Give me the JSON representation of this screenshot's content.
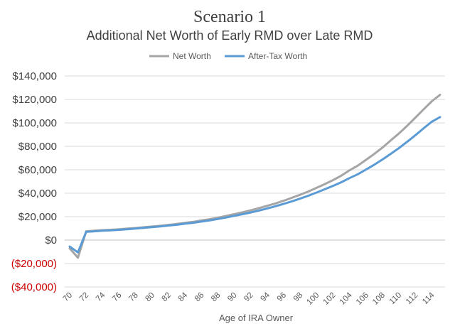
{
  "chart_data": {
    "type": "line",
    "title": "Scenario 1",
    "subtitle": "Additional Net Worth of Early RMD over Late RMD",
    "xlabel": "Age of IRA Owner",
    "ylabel": "",
    "ylim": [
      -40000,
      140000
    ],
    "yticks": [
      140000,
      120000,
      100000,
      80000,
      60000,
      40000,
      20000,
      0,
      -20000,
      -40000
    ],
    "ytick_labels": [
      "$140,000",
      "$120,000",
      "$100,000",
      "$80,000",
      "$60,000",
      "$40,000",
      "$20,000",
      "$0",
      "($20,000)",
      "($40,000)"
    ],
    "x": [
      70,
      71,
      72,
      73,
      74,
      75,
      76,
      77,
      78,
      79,
      80,
      81,
      82,
      83,
      84,
      85,
      86,
      87,
      88,
      89,
      90,
      91,
      92,
      93,
      94,
      95,
      96,
      97,
      98,
      99,
      100,
      101,
      102,
      103,
      104,
      105,
      106,
      107,
      108,
      109,
      110,
      111,
      112,
      113,
      114,
      115
    ],
    "xtick_labels": [
      "70",
      "72",
      "74",
      "76",
      "78",
      "80",
      "82",
      "84",
      "86",
      "88",
      "90",
      "92",
      "94",
      "96",
      "98",
      "100",
      "102",
      "104",
      "106",
      "108",
      "110",
      "112",
      "114"
    ],
    "grid": true,
    "legend_position": "top",
    "series": [
      {
        "name": "Net Worth",
        "color": "#a5a5a5",
        "values": [
          -7000,
          -15000,
          7500,
          8000,
          8500,
          8800,
          9300,
          9800,
          10300,
          11000,
          11600,
          12200,
          13000,
          13800,
          14700,
          15600,
          16700,
          17800,
          19100,
          20600,
          22100,
          23700,
          25400,
          27300,
          29300,
          31300,
          33600,
          36100,
          38700,
          41500,
          44600,
          47800,
          51200,
          55000,
          59500,
          63500,
          68500,
          73500,
          79000,
          85000,
          91000,
          97500,
          104500,
          111500,
          118500,
          124000
        ]
      },
      {
        "name": "After-Tax Worth",
        "color": "#5b9bd5",
        "values": [
          -5500,
          -10500,
          7000,
          7500,
          8000,
          8300,
          8800,
          9300,
          9800,
          10500,
          11100,
          11700,
          12400,
          13100,
          14000,
          14800,
          15800,
          16800,
          18000,
          19300,
          20700,
          22100,
          23600,
          25200,
          27000,
          28900,
          30900,
          33100,
          35400,
          37900,
          40600,
          43400,
          46300,
          49400,
          52900,
          56200,
          60200,
          64300,
          68800,
          73600,
          78500,
          83900,
          89500,
          95400,
          101000,
          105000
        ]
      }
    ]
  }
}
